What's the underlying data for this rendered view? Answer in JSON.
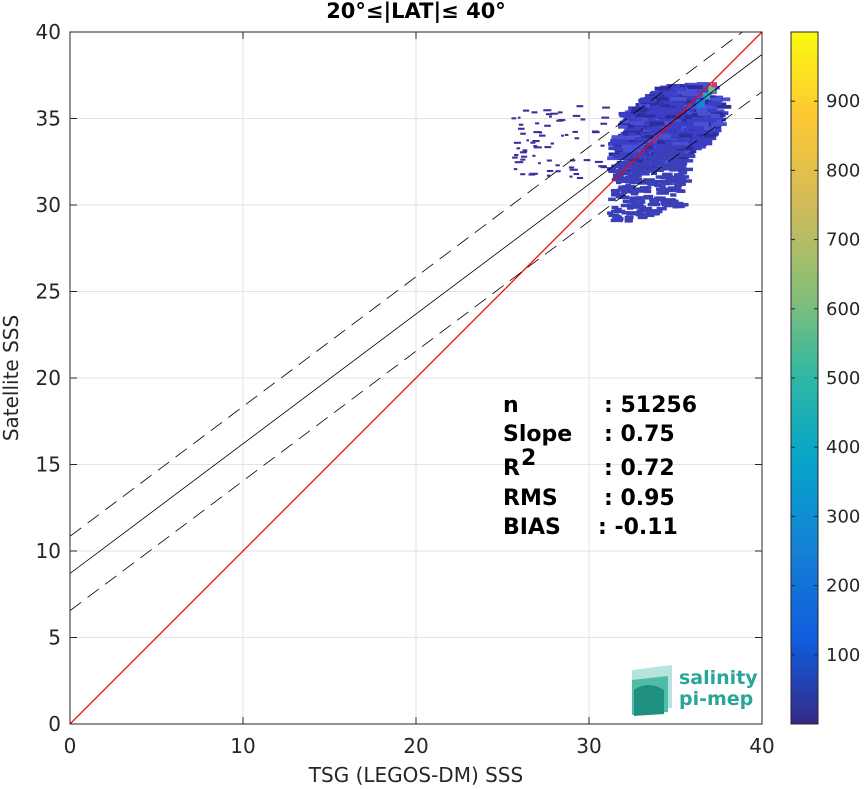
{
  "chart_data": {
    "type": "scatter",
    "title": "20°≤|LAT|≤ 40°",
    "xlabel": "TSG (LEGOS-DM) SSS",
    "ylabel": "Satellite SSS",
    "xlim": [
      0,
      40
    ],
    "ylim": [
      0,
      40
    ],
    "xticks": [
      "0",
      "10",
      "20",
      "30",
      "40"
    ],
    "yticks": [
      "0",
      "5",
      "10",
      "15",
      "20",
      "25",
      "30",
      "35",
      "40"
    ],
    "grid": true,
    "fit_line": {
      "intercept": 8.7,
      "slope": 0.75,
      "color": "#000000"
    },
    "fit_bounds": {
      "offset": 2.15,
      "style": "dashed",
      "color": "#000000"
    },
    "identity_line": {
      "slope": 1,
      "intercept": 0,
      "color": "#ff0000"
    },
    "density": {
      "description": "2D histogram point density",
      "x_range": [
        28,
        38
      ],
      "y_range": [
        28.5,
        37.5
      ],
      "peak_x": 36.5,
      "peak_y": 36
    },
    "colorbar": {
      "range": [
        0,
        1000
      ],
      "ticks": [
        "100",
        "200",
        "300",
        "400",
        "500",
        "600",
        "700",
        "800",
        "900"
      ],
      "colormap": "parula"
    },
    "stats": [
      {
        "label": "n",
        "value": ": 51256"
      },
      {
        "label": "Slope",
        "value": ": 0.75"
      },
      {
        "label": "R",
        "sup": "2",
        "value": ": 0.72"
      },
      {
        "label": "RMS",
        "value": ": 0.95"
      },
      {
        "label": "BIAS",
        "value": ": -0.11"
      }
    ]
  },
  "logo": {
    "line1": "salinity",
    "line2": "pi-mep",
    "color": "#2aa59a"
  }
}
